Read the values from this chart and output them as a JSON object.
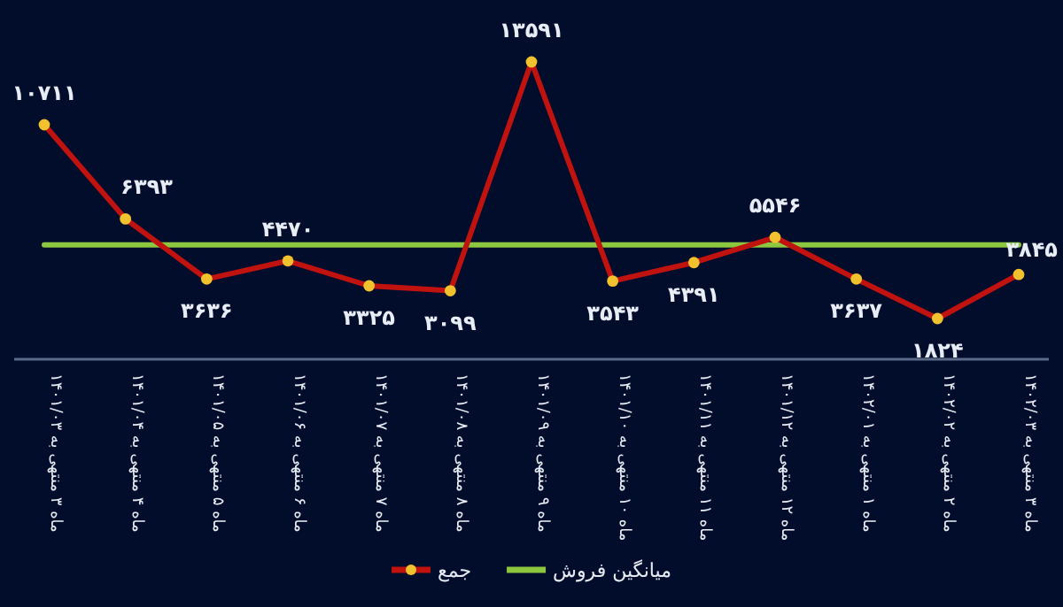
{
  "chart_data": {
    "type": "line",
    "categories": [
      "ماه ۳ منتهی به ۱۴۰۱/۰۳",
      "ماه ۴ منتهی به ۱۴۰۱/۰۴",
      "ماه ۵ منتهی به ۱۴۰۱/۰۵",
      "ماه ۶ منتهی به ۱۴۰۱/۰۶",
      "ماه ۷ منتهی به ۱۴۰۱/۰۷",
      "ماه ۸ منتهی به ۱۴۰۱/۰۸",
      "ماه ۹ منتهی به ۱۴۰۱/۰۹",
      "ماه ۱۰ منتهی به ۱۴۰۱/۱۰",
      "ماه ۱۱ منتهی به ۱۴۰۱/۱۱",
      "ماه ۱۲ منتهی به ۱۴۰۱/۱۲",
      "ماه ۱ منتهی به ۱۴۰۲/۰۱",
      "ماه ۲ منتهی به ۱۴۰۲/۰۲",
      "ماه ۳ منتهی به ۱۴۰۲/۰۳"
    ],
    "series": [
      {
        "name": "جمع",
        "color": "#c0120f",
        "marker": "circle",
        "values": [
          10711,
          6393,
          3636,
          4470,
          3325,
          3099,
          13591,
          3543,
          4391,
          5546,
          3637,
          1824,
          3845
        ],
        "value_labels": [
          "۱۰۷۱۱",
          "۶۳۹۳",
          "۳۶۳۶",
          "۴۴۷۰",
          "۳۳۲۵",
          "۳۰۹۹",
          "۱۳۵۹۱",
          "۳۵۴۳",
          "۴۳۹۱",
          "۵۵۴۶",
          "۳۶۳۷",
          "۱۸۲۴",
          "۳۸۴۵"
        ]
      },
      {
        "name": "میانگین فروش",
        "color": "#8dc63f",
        "values": [
          5200,
          5200,
          5200,
          5200,
          5200,
          5200,
          5200,
          5200,
          5200,
          5200,
          5200,
          5200,
          5200
        ]
      }
    ],
    "legend": "bottom",
    "grid": false
  }
}
